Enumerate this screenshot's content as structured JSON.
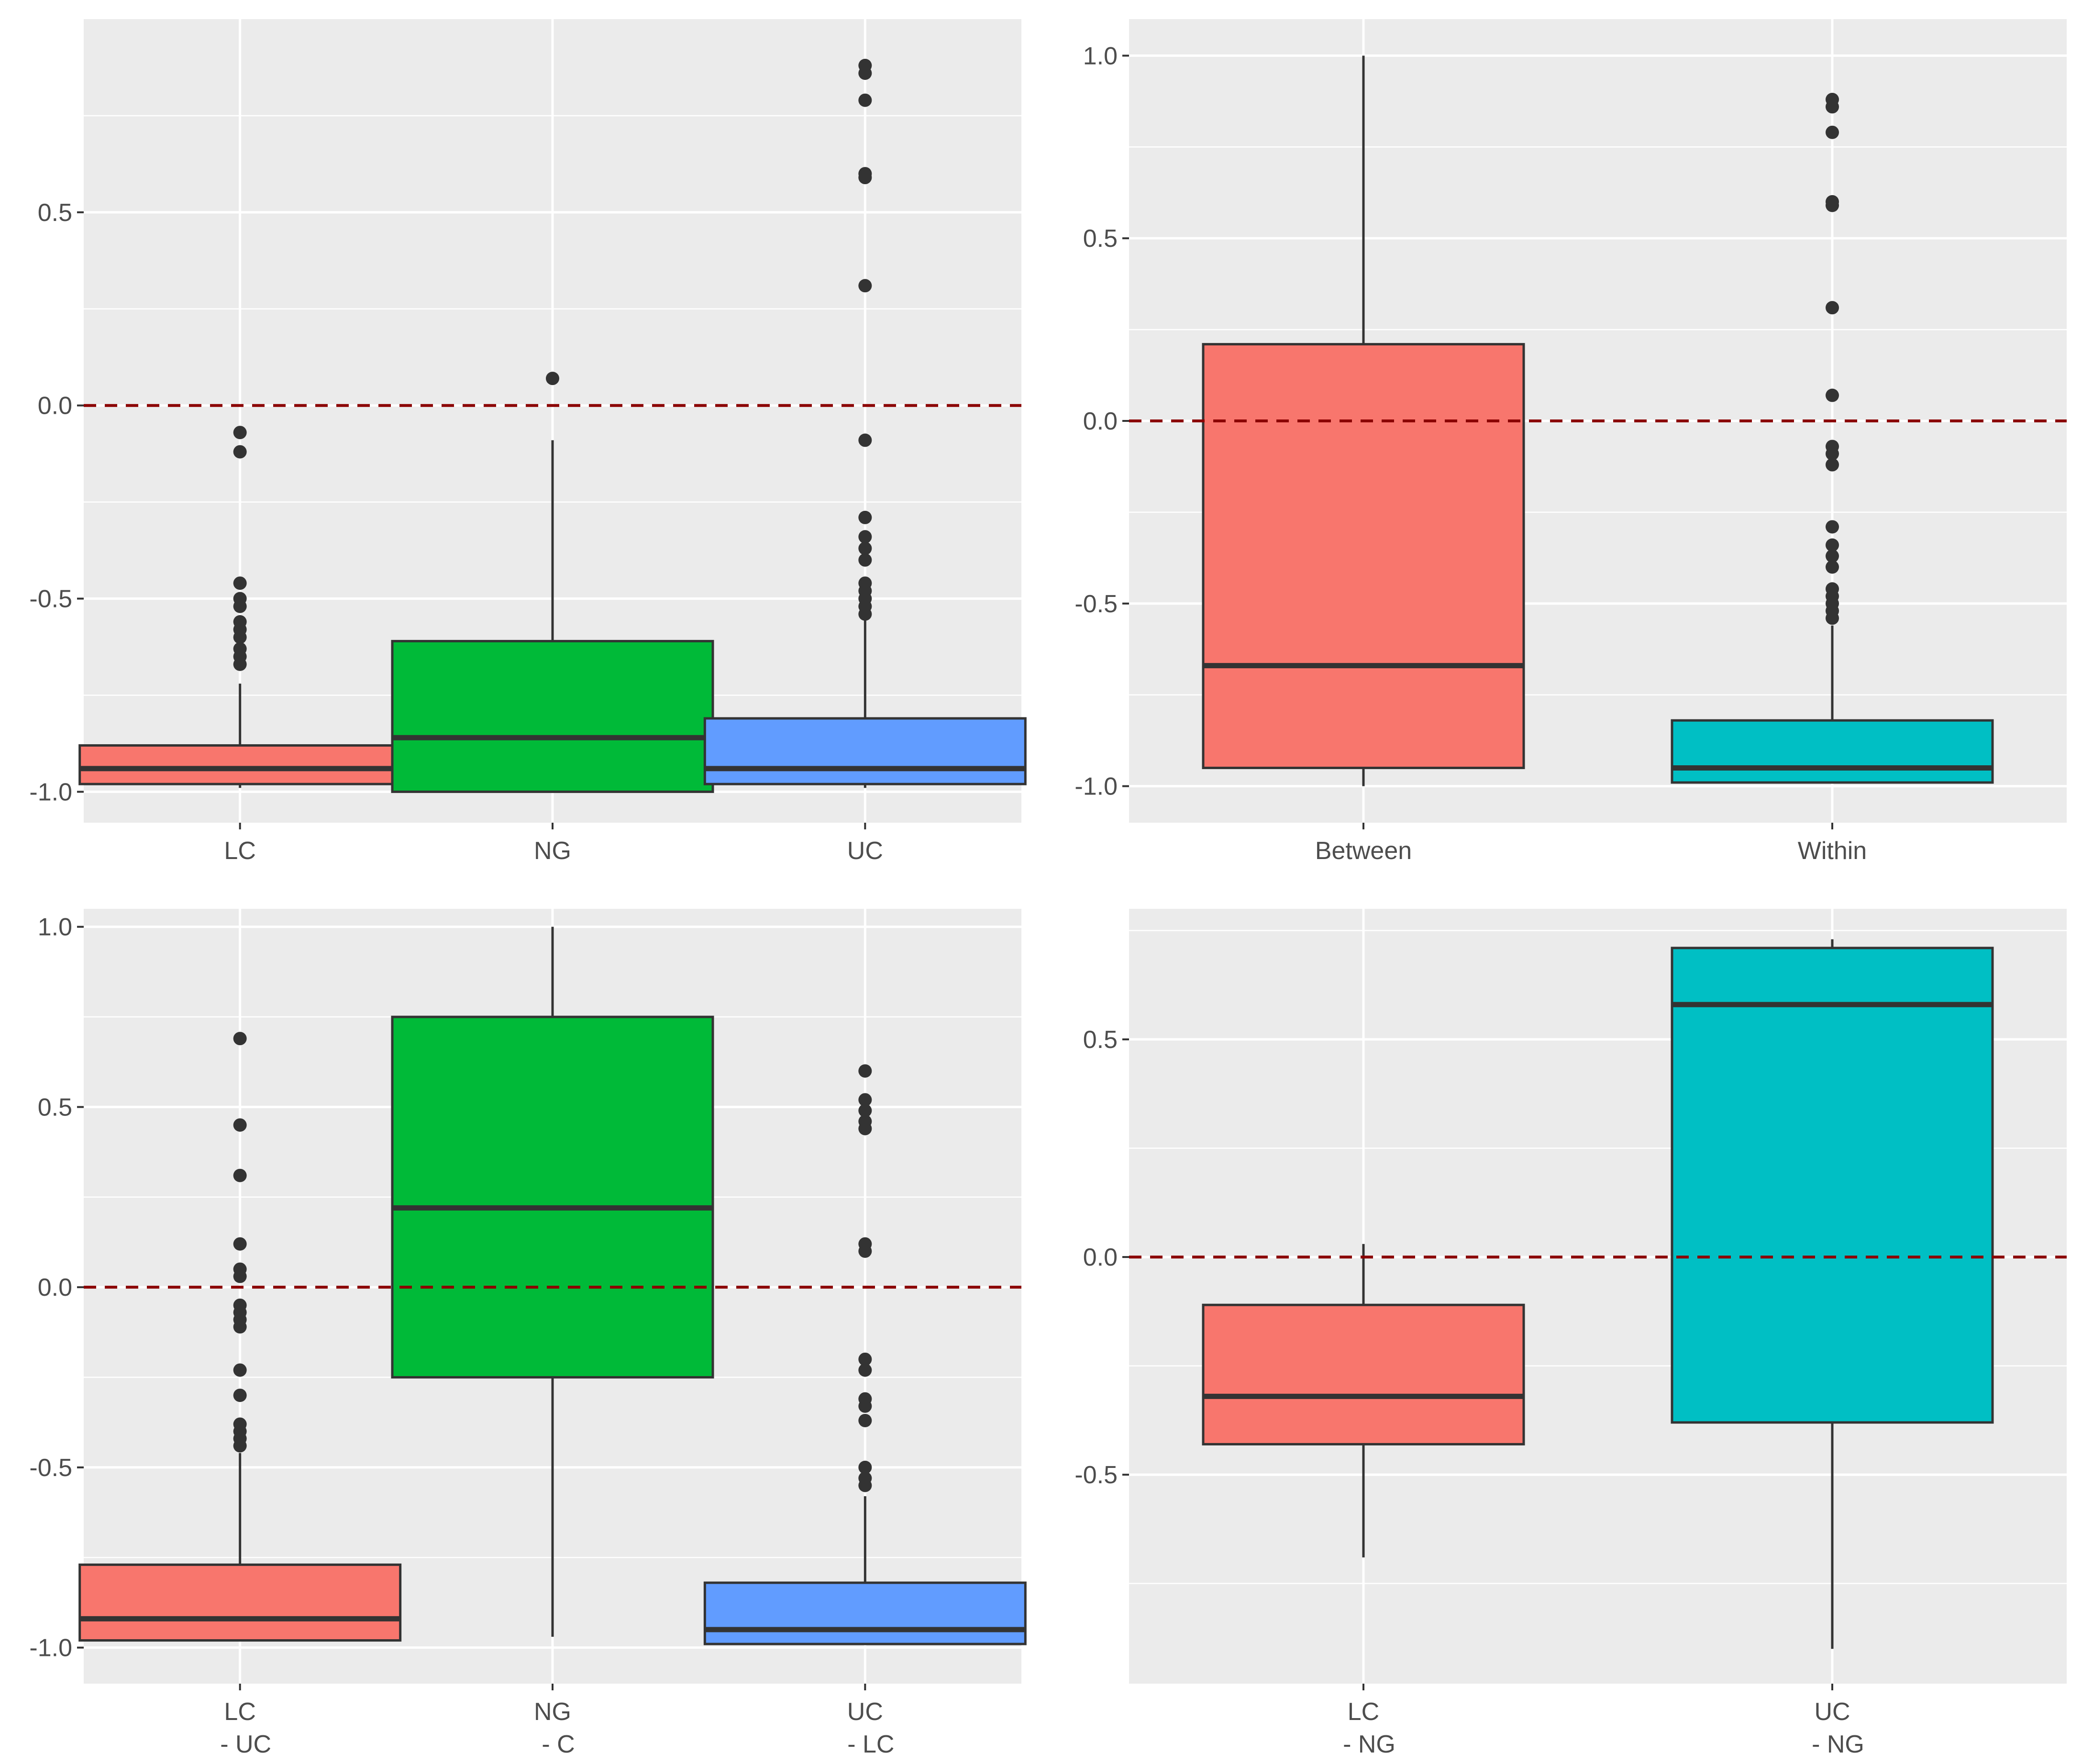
{
  "figure": {
    "colors": {
      "panel_bg": "#ebebeb",
      "grid": "#ffffff",
      "box_outline": "#333333",
      "reference_line": "#8b0000",
      "salmon": "#f8766d",
      "green": "#00ba38",
      "blue": "#619cff",
      "teal": "#00bfc4",
      "tick_text": "#4d4d4d"
    }
  },
  "chart_data": [
    {
      "type": "box",
      "position": "top-left",
      "title": "",
      "xlabel": "",
      "ylabel": "",
      "ylim": [
        -1.08,
        1.0
      ],
      "yticks": [
        -1.0,
        -0.5,
        0.0,
        0.5
      ],
      "ytick_labels": [
        "-1.0",
        "-0.5",
        "0.0",
        "0.5"
      ],
      "reference_line": 0.0,
      "categories": [
        {
          "label_lines": [
            "LC"
          ],
          "color": "#f8766d",
          "stats": {
            "min": -0.99,
            "q1": -0.98,
            "median": -0.94,
            "q3": -0.88,
            "max": -0.72
          },
          "outliers": [
            -0.07,
            -0.12,
            -0.46,
            -0.5,
            -0.52,
            -0.56,
            -0.58,
            -0.6,
            -0.63,
            -0.65,
            -0.67
          ]
        },
        {
          "label_lines": [
            "NG"
          ],
          "color": "#00ba38",
          "stats": {
            "min": -1.0,
            "q1": -1.0,
            "median": -0.86,
            "q3": -0.61,
            "max": -0.09
          },
          "outliers": [
            0.07
          ]
        },
        {
          "label_lines": [
            "UC"
          ],
          "color": "#619cff",
          "stats": {
            "min": -0.99,
            "q1": -0.98,
            "median": -0.94,
            "q3": -0.81,
            "max": -0.55
          },
          "outliers": [
            0.88,
            0.86,
            0.79,
            0.6,
            0.59,
            0.31,
            -0.09,
            -0.29,
            -0.34,
            -0.37,
            -0.4,
            -0.46,
            -0.48,
            -0.5,
            -0.52,
            -0.54
          ]
        }
      ]
    },
    {
      "type": "box",
      "position": "top-right",
      "title": "",
      "xlabel": "",
      "ylabel": "",
      "ylim": [
        -1.1,
        1.1
      ],
      "yticks": [
        -1.0,
        -0.5,
        0.0,
        0.5,
        1.0
      ],
      "ytick_labels": [
        "-1.0",
        "-0.5",
        "0.0",
        "0.5",
        "1.0"
      ],
      "reference_line": 0.0,
      "categories": [
        {
          "label_lines": [
            "Between"
          ],
          "color": "#f8766d",
          "stats": {
            "min": -1.0,
            "q1": -0.95,
            "median": -0.67,
            "q3": 0.21,
            "max": 1.0
          },
          "outliers": []
        },
        {
          "label_lines": [
            "Within"
          ],
          "color": "#00bfc4",
          "stats": {
            "min": -0.99,
            "q1": -0.99,
            "median": -0.95,
            "q3": -0.82,
            "max": -0.56
          },
          "outliers": [
            0.88,
            0.86,
            0.79,
            0.6,
            0.59,
            0.31,
            0.07,
            -0.07,
            -0.09,
            -0.12,
            -0.29,
            -0.34,
            -0.37,
            -0.4,
            -0.46,
            -0.48,
            -0.5,
            -0.52,
            -0.54
          ]
        }
      ]
    },
    {
      "type": "box",
      "position": "bottom-left",
      "title": "",
      "xlabel": "",
      "ylabel": "",
      "ylim": [
        -1.1,
        1.05
      ],
      "yticks": [
        -1.0,
        -0.5,
        0.0,
        0.5,
        1.0
      ],
      "ytick_labels": [
        "-1.0",
        "-0.5",
        "0.0",
        "0.5",
        "1.0"
      ],
      "reference_line": 0.0,
      "categories": [
        {
          "label_lines": [
            "LC",
            "- UC"
          ],
          "color": "#f8766d",
          "stats": {
            "min": -0.98,
            "q1": -0.98,
            "median": -0.92,
            "q3": -0.77,
            "max": -0.46
          },
          "outliers": [
            0.69,
            0.45,
            0.31,
            0.12,
            0.05,
            0.03,
            -0.05,
            -0.07,
            -0.09,
            -0.11,
            -0.23,
            -0.3,
            -0.38,
            -0.4,
            -0.42,
            -0.44
          ]
        },
        {
          "label_lines": [
            "NG",
            "- C"
          ],
          "color": "#00ba38",
          "stats": {
            "min": -0.97,
            "q1": -0.25,
            "median": 0.22,
            "q3": 0.75,
            "max": 1.0
          },
          "outliers": []
        },
        {
          "label_lines": [
            "UC",
            "- LC"
          ],
          "color": "#619cff",
          "stats": {
            "min": -0.99,
            "q1": -0.99,
            "median": -0.95,
            "q3": -0.82,
            "max": -0.58
          },
          "outliers": [
            0.6,
            0.52,
            0.49,
            0.46,
            0.44,
            0.12,
            0.1,
            -0.2,
            -0.23,
            -0.31,
            -0.33,
            -0.37,
            -0.5,
            -0.53,
            -0.55
          ]
        }
      ]
    },
    {
      "type": "box",
      "position": "bottom-right",
      "title": "",
      "xlabel": "",
      "ylabel": "",
      "ylim": [
        -0.98,
        0.8
      ],
      "yticks": [
        -0.5,
        0.0,
        0.5
      ],
      "ytick_labels": [
        "-0.5",
        "0.0",
        "0.5"
      ],
      "reference_line": 0.0,
      "categories": [
        {
          "label_lines": [
            "LC",
            "- NG"
          ],
          "color": "#f8766d",
          "stats": {
            "min": -0.69,
            "q1": -0.43,
            "median": -0.32,
            "q3": -0.11,
            "max": 0.03
          },
          "outliers": []
        },
        {
          "label_lines": [
            "UC",
            "- NG"
          ],
          "color": "#00bfc4",
          "stats": {
            "min": -0.9,
            "q1": -0.38,
            "median": 0.58,
            "q3": 0.71,
            "max": 0.73
          },
          "outliers": []
        }
      ]
    }
  ]
}
